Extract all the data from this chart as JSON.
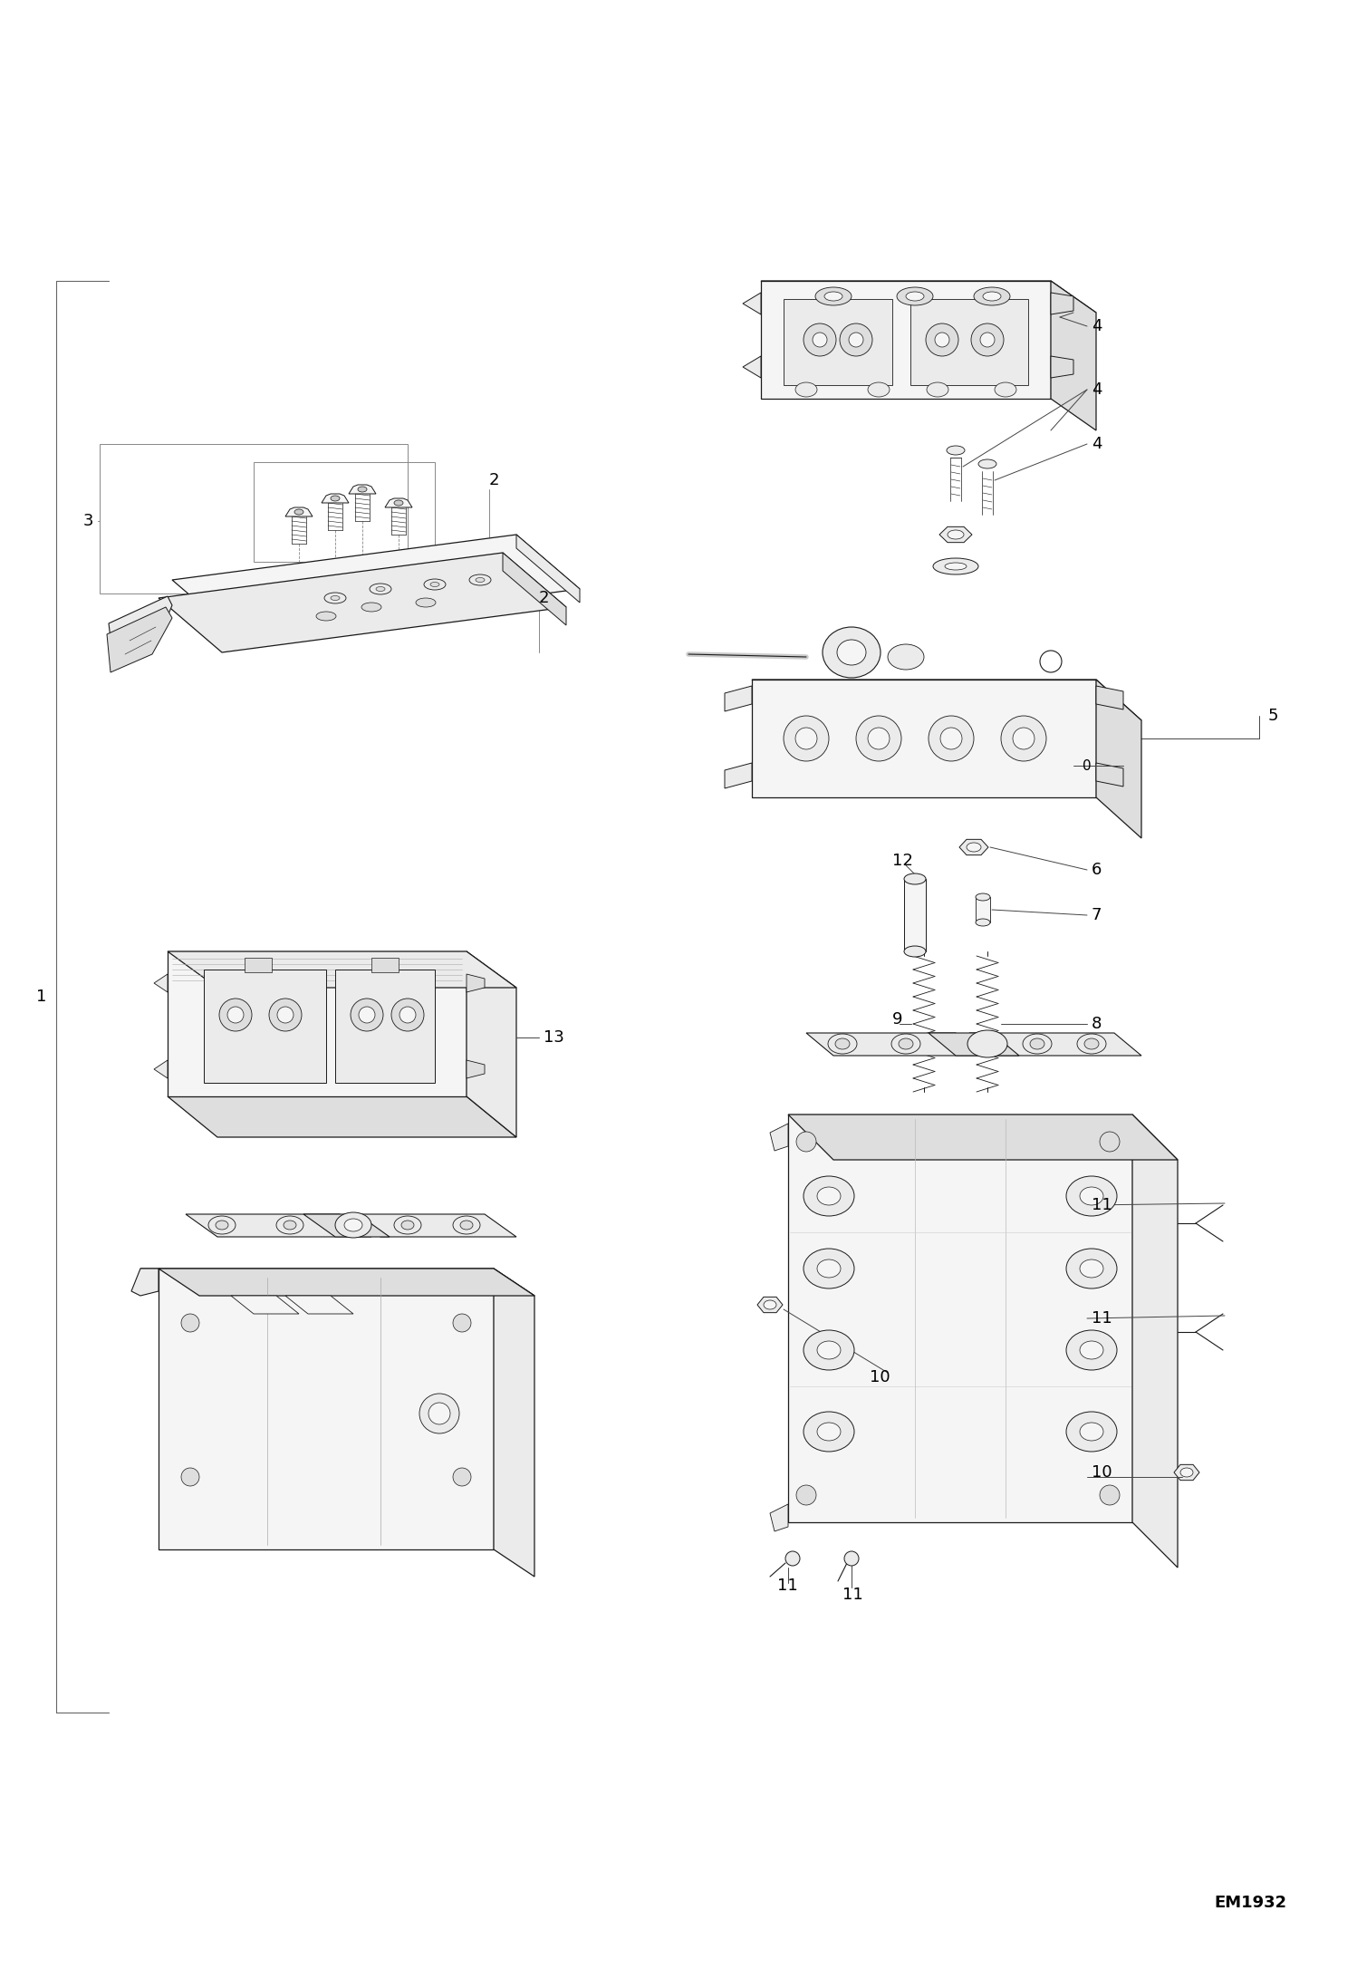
{
  "background_color": "#ffffff",
  "line_color": "#1a1a1a",
  "label_color": "#000000",
  "diagram_id": "EM1932",
  "label_fontsize": 13,
  "diagram_id_fontsize": 13,
  "fc_light": "#f5f5f5",
  "fc_mid": "#ebebeb",
  "fc_dark": "#dedede",
  "lw_main": 0.9,
  "lw_thin": 0.6,
  "lw_thick": 1.2
}
